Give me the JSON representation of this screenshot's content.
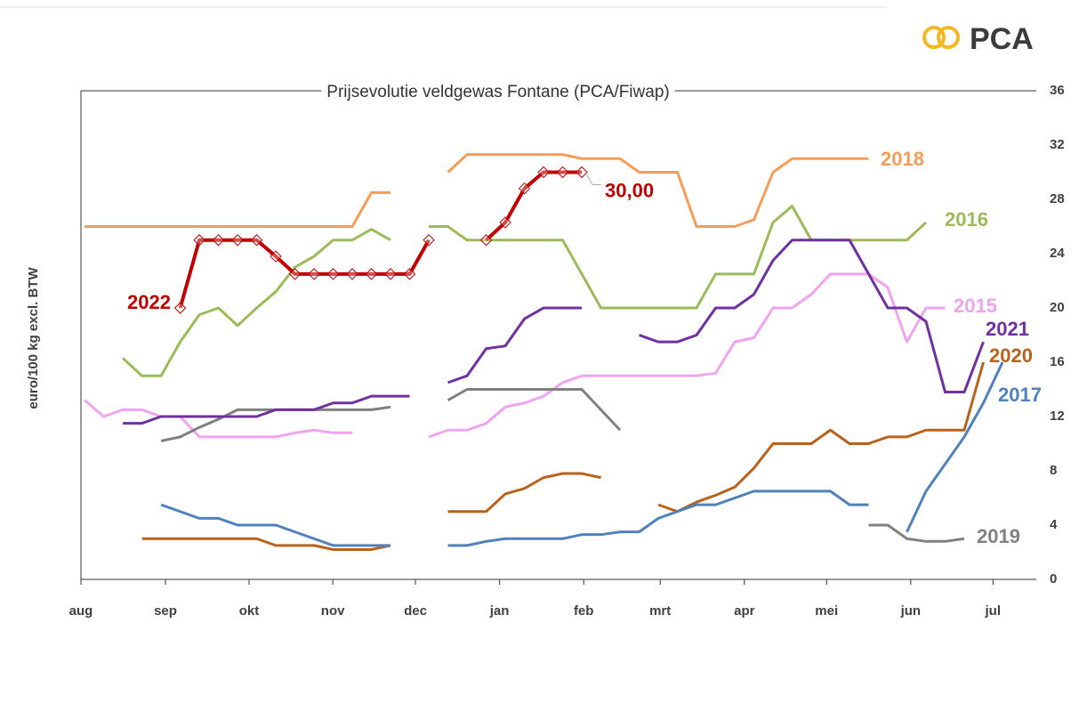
{
  "logo": "PCA",
  "chart_data": {
    "type": "line",
    "title": "Prijsevolutie veldgewas Fontane (PCA/Fiwap)",
    "ylabel": "euro/100 kg excl. BTW",
    "annotation": "30,00",
    "x": [
      0,
      1,
      2,
      3,
      4,
      5,
      6,
      7,
      8,
      9,
      10,
      11,
      12,
      13,
      14,
      15,
      16,
      17,
      18,
      19,
      20,
      21,
      22,
      23,
      24,
      25,
      26,
      27,
      28,
      29,
      30,
      31,
      32,
      33,
      34,
      35,
      36,
      37,
      38,
      39,
      40,
      41,
      42,
      43,
      44,
      45,
      46,
      47,
      48
    ],
    "xlim": [
      -0.19,
      49.86
    ],
    "xticks": [
      {
        "value": -0.19,
        "label": "aug"
      },
      {
        "value": 4.23,
        "label": "sep"
      },
      {
        "value": 8.6,
        "label": "okt"
      },
      {
        "value": 12.98,
        "label": "nov"
      },
      {
        "value": 17.3,
        "label": "dec"
      },
      {
        "value": 21.7,
        "label": "jan"
      },
      {
        "value": 26.1,
        "label": "feb"
      },
      {
        "value": 30.1,
        "label": "mrt"
      },
      {
        "value": 34.5,
        "label": "apr"
      },
      {
        "value": 38.8,
        "label": "mei"
      },
      {
        "value": 43.2,
        "label": "jun"
      },
      {
        "value": 47.5,
        "label": "jul"
      }
    ],
    "ylim": [
      0,
      36
    ],
    "yticks": [
      0,
      4,
      8,
      12,
      16,
      20,
      24,
      28,
      32,
      36
    ],
    "series": [
      {
        "name": "2018",
        "color": "#f59d56",
        "values": [
          26,
          26,
          26,
          26,
          26,
          26,
          26,
          26,
          26,
          26,
          26,
          26,
          26,
          26,
          26,
          28.5,
          28.5,
          null,
          null,
          30,
          31.3,
          31.3,
          31.3,
          31.3,
          31.3,
          31.3,
          31,
          31,
          31,
          30,
          30,
          30,
          26,
          26,
          26,
          26.5,
          30,
          31,
          31,
          31,
          31,
          31,
          null,
          null,
          null,
          null,
          null,
          null,
          null
        ]
      },
      {
        "name": "2016",
        "color": "#9bbb59",
        "values": [
          null,
          null,
          16.3,
          15,
          15,
          17.5,
          19.5,
          20,
          18.7,
          20,
          21.2,
          23,
          23.8,
          25,
          25,
          25.8,
          25,
          null,
          26,
          26,
          25,
          25,
          25,
          25,
          25,
          25,
          22.5,
          20,
          20,
          20,
          20,
          20,
          20,
          22.5,
          22.5,
          22.5,
          26.3,
          27.5,
          25,
          25,
          25,
          25,
          25,
          25,
          26.3,
          null,
          null,
          null,
          null
        ]
      },
      {
        "name": "2015",
        "color": "#f0a3ef",
        "values": [
          13.2,
          12,
          12.5,
          12.5,
          12,
          12,
          10.5,
          10.5,
          10.5,
          10.5,
          10.5,
          10.8,
          11,
          10.8,
          10.8,
          null,
          null,
          null,
          10.5,
          11,
          11,
          11.5,
          12.7,
          13,
          13.5,
          14.5,
          15,
          15,
          15,
          15,
          15,
          15,
          15,
          15.2,
          17.5,
          17.8,
          20,
          20,
          21,
          22.5,
          22.5,
          22.5,
          21.5,
          17.5,
          20,
          20,
          null,
          null,
          null
        ]
      },
      {
        "name": "2019",
        "color": "#808080",
        "values": [
          null,
          null,
          null,
          null,
          10.2,
          10.5,
          11.2,
          11.8,
          12.5,
          12.5,
          12.5,
          12.5,
          12.5,
          12.5,
          12.5,
          12.5,
          12.7,
          null,
          null,
          13.2,
          14,
          14,
          14,
          14,
          14,
          14,
          14,
          12.5,
          11,
          null,
          null,
          null,
          null,
          null,
          null,
          null,
          null,
          null,
          null,
          null,
          null,
          4,
          4,
          3,
          2.8,
          2.8,
          3,
          null,
          null
        ]
      },
      {
        "name": "2021",
        "color": "#7030a0",
        "values": [
          null,
          null,
          11.5,
          11.5,
          12,
          12,
          12,
          12,
          12,
          12,
          12.5,
          12.5,
          12.5,
          13,
          13,
          13.5,
          13.5,
          13.5,
          null,
          14.5,
          15,
          17,
          17.2,
          19.2,
          20,
          20,
          20,
          null,
          null,
          18,
          17.5,
          17.5,
          18,
          20,
          20,
          21,
          23.5,
          25,
          25,
          25,
          25,
          22.5,
          20,
          20,
          19,
          13.8,
          13.8,
          17.5,
          null
        ]
      },
      {
        "name": "2020",
        "color": "#b8621b",
        "values": [
          null,
          null,
          null,
          3,
          3,
          3,
          3,
          3,
          3,
          3,
          2.5,
          2.5,
          2.5,
          2.2,
          2.2,
          2.2,
          2.5,
          null,
          null,
          5,
          5,
          5,
          6.3,
          6.7,
          7.5,
          7.8,
          7.8,
          7.5,
          null,
          null,
          5.5,
          5,
          5.7,
          6.2,
          6.8,
          8.2,
          10,
          10,
          10,
          11,
          10,
          10,
          10.5,
          10.5,
          11,
          11,
          11,
          16,
          null
        ]
      },
      {
        "name": "2017",
        "color": "#4f81bd",
        "values": [
          null,
          null,
          null,
          null,
          5.5,
          5,
          4.5,
          4.5,
          4,
          4,
          4,
          3.5,
          3,
          2.5,
          2.5,
          2.5,
          2.5,
          null,
          null,
          2.5,
          2.5,
          2.8,
          3,
          3,
          3,
          3,
          3.3,
          3.3,
          3.5,
          3.5,
          4.5,
          5,
          5.5,
          5.5,
          6,
          6.5,
          6.5,
          6.5,
          6.5,
          6.5,
          5.5,
          5.5,
          null,
          3.5,
          6.5,
          8.5,
          10.5,
          13,
          16
        ]
      },
      {
        "name": "2022",
        "color": "#c00000",
        "markers": true,
        "values": [
          null,
          null,
          null,
          null,
          null,
          20,
          25,
          25,
          25,
          25,
          23.8,
          22.5,
          22.5,
          22.5,
          22.5,
          22.5,
          22.5,
          22.5,
          25,
          null,
          null,
          25,
          26.3,
          28.8,
          30,
          30,
          30,
          null,
          null,
          null,
          null,
          null,
          null,
          null,
          null,
          null,
          null,
          null,
          null,
          null,
          null,
          null,
          null,
          null,
          null,
          null,
          null,
          null,
          null
        ]
      }
    ]
  }
}
